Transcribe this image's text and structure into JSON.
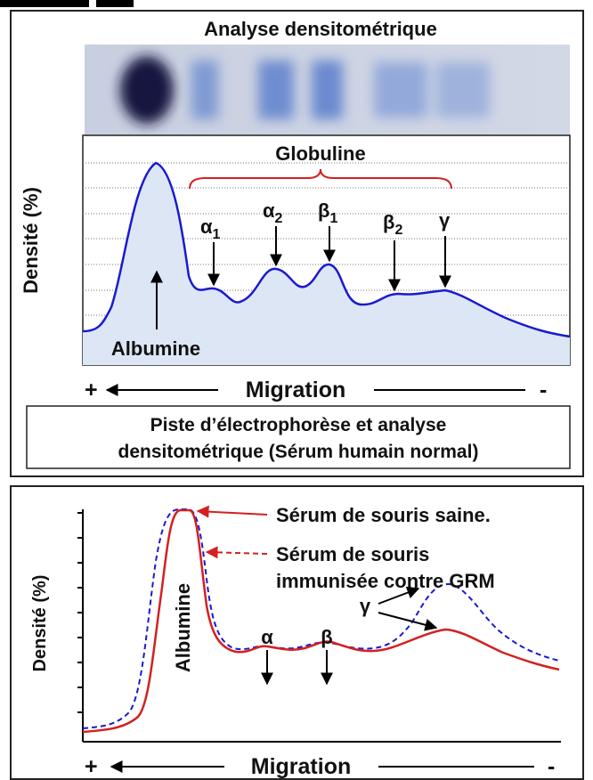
{
  "panel1": {
    "title": "Analyse densitométrique",
    "y_label": "Densité (%)",
    "bracket_label": "Globuline",
    "peaks": [
      {
        "symbol": "α",
        "sub": "1"
      },
      {
        "symbol": "α",
        "sub": "2"
      },
      {
        "symbol": "β",
        "sub": "1"
      },
      {
        "symbol": "β",
        "sub": "2"
      },
      {
        "symbol": "γ"
      }
    ],
    "albumin": "Albumine",
    "migration": {
      "plus": "+",
      "label": "Migration",
      "minus": "-"
    },
    "caption": [
      "Piste d’électrophorèse et analyse",
      "densitométrique (Sérum humain normal)"
    ]
  },
  "panel2": {
    "y_label": "Densité (%)",
    "legend": [
      "Sérum de souris saine.",
      "Sérum de souris",
      "immunisée contre GRM"
    ],
    "albumin": "Albumine",
    "peaks": [
      "α",
      "β",
      "γ"
    ],
    "migration": {
      "plus": "+",
      "label": "Migration",
      "minus": "-"
    }
  }
}
